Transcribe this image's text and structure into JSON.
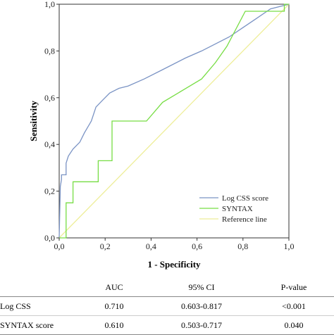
{
  "chart_data": {
    "type": "line",
    "title": "",
    "xlabel": "1 - Specificity",
    "ylabel": "Sensitivity",
    "xlim": [
      0,
      1
    ],
    "ylim": [
      0,
      1
    ],
    "x_ticks": [
      "0,0",
      "0,2",
      "0,4",
      "0,6",
      "0,8",
      "1,0"
    ],
    "y_ticks": [
      "0,0",
      "0,2",
      "0,4",
      "0,6",
      "0,8",
      "1,0"
    ],
    "grid": false,
    "legend_position": "bottom-right",
    "series": [
      {
        "name": "Log CSS score",
        "color": "#7a93c4",
        "x": [
          0,
          0.005,
          0.01,
          0.01,
          0.03,
          0.03,
          0.04,
          0.06,
          0.09,
          0.11,
          0.14,
          0.16,
          0.19,
          0.22,
          0.26,
          0.3,
          0.37,
          0.45,
          0.55,
          0.62,
          0.74,
          0.8,
          0.86,
          0.92,
          1.0
        ],
        "y": [
          0,
          0.22,
          0.25,
          0.27,
          0.27,
          0.32,
          0.35,
          0.38,
          0.41,
          0.45,
          0.5,
          0.56,
          0.59,
          0.62,
          0.64,
          0.65,
          0.68,
          0.72,
          0.77,
          0.8,
          0.86,
          0.9,
          0.94,
          0.98,
          1.0
        ]
      },
      {
        "name": "SYNTAX",
        "color": "#77dd44",
        "x": [
          0,
          0.03,
          0.03,
          0.05,
          0.06,
          0.06,
          0.17,
          0.17,
          0.23,
          0.23,
          0.38,
          0.45,
          0.62,
          0.68,
          0.73,
          0.81,
          0.84,
          0.98,
          0.98,
          1.0
        ],
        "y": [
          0,
          0,
          0.15,
          0.15,
          0.15,
          0.24,
          0.24,
          0.33,
          0.33,
          0.5,
          0.5,
          0.58,
          0.68,
          0.75,
          0.82,
          0.97,
          0.97,
          0.97,
          1.0,
          1.0
        ]
      },
      {
        "name": "Reference line",
        "color": "#eeee99",
        "x": [
          0,
          1
        ],
        "y": [
          0,
          1
        ]
      }
    ]
  },
  "table": {
    "headers": [
      "",
      "AUC",
      "95% CI",
      "P-value"
    ],
    "rows": [
      [
        "Log CSS",
        "0.710",
        "0.603-0.817",
        "<0.001"
      ],
      [
        "SYNTAX score",
        "0.610",
        "0.503-0.717",
        "0.040"
      ]
    ]
  }
}
